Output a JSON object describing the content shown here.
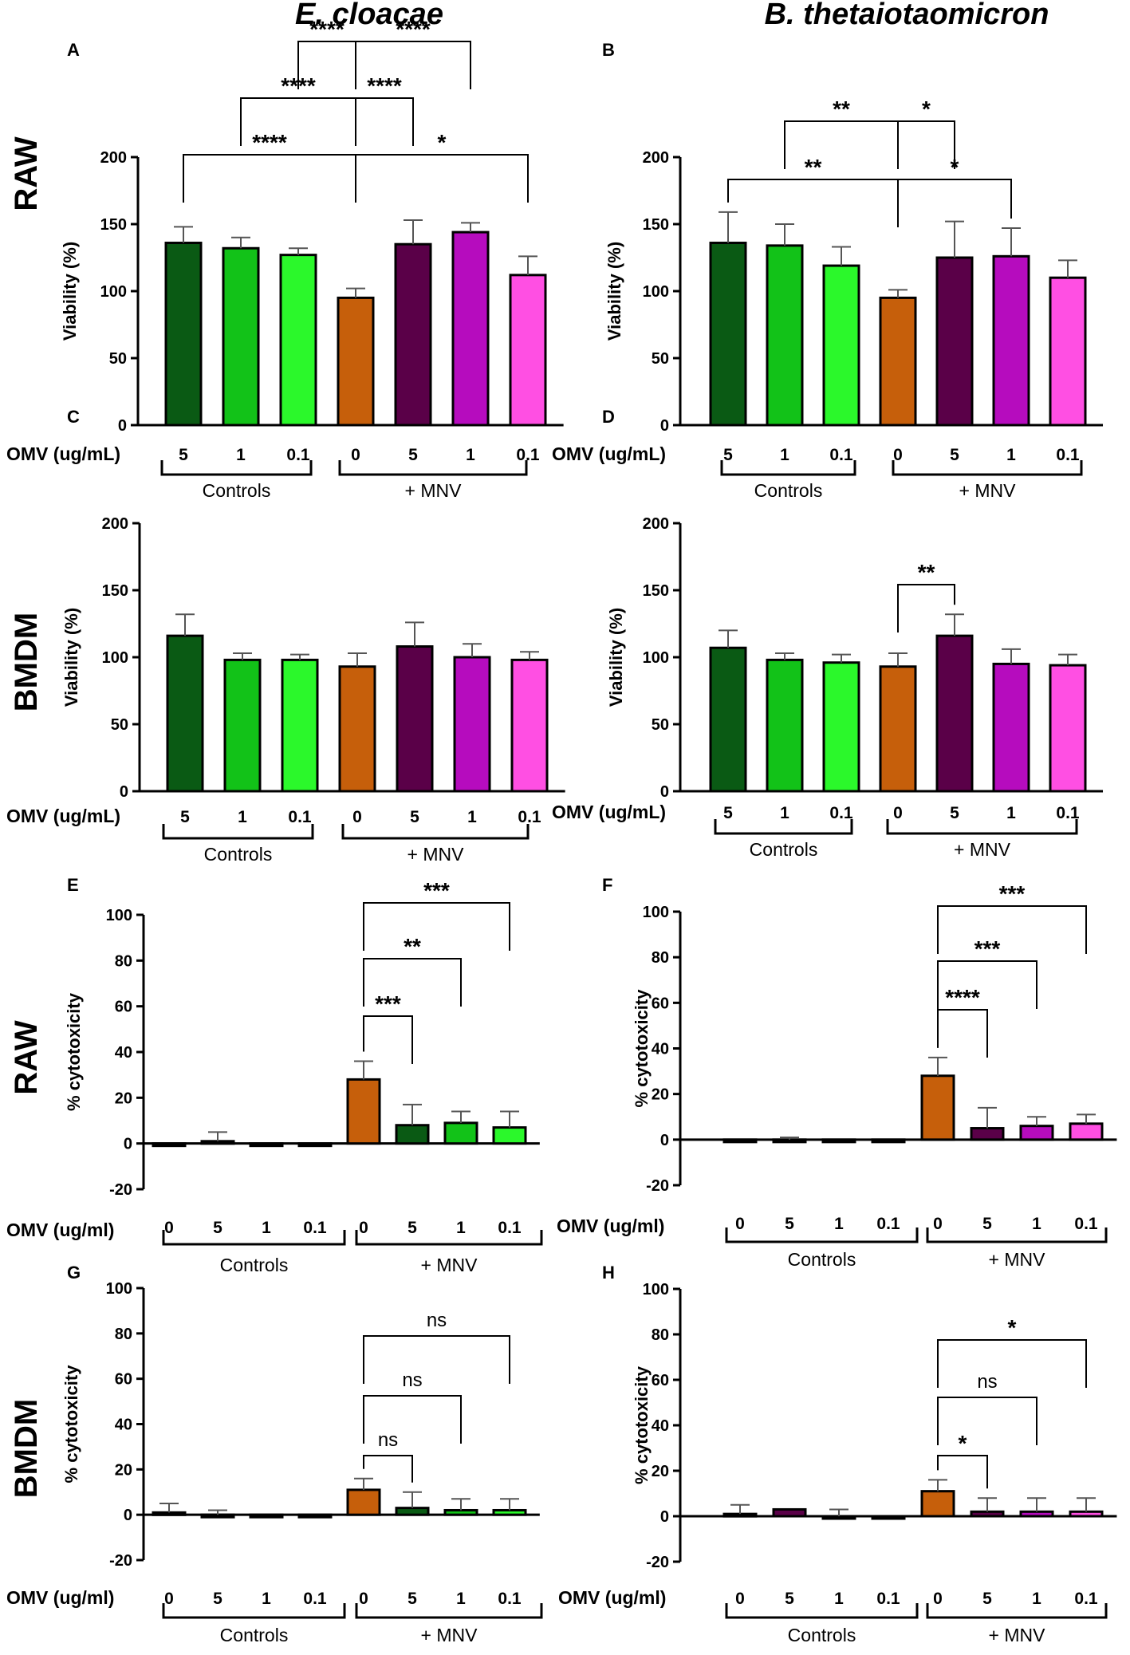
{
  "columns": [
    "E. cloacae",
    "B. thetaiotaomicron"
  ],
  "rows": [
    "RAW",
    "BMDM",
    "RAW",
    "BMDM"
  ],
  "colors": {
    "dark_green": "#0a5a14",
    "green": "#12c218",
    "light_green": "#2bf82b",
    "orange": "#c65f0b",
    "dark_purple": "#5a0048",
    "purple": "#b60cbe",
    "pink": "#ff4fe3"
  },
  "chart_data": [
    {
      "panel": "A",
      "organism": "E. cloacae",
      "cell": "RAW",
      "type": "bar",
      "title": "",
      "ylabel": "Viability (%)",
      "ylim": [
        0,
        200
      ],
      "yticks": [
        0,
        50,
        100,
        150,
        200
      ],
      "omv_label": "OMV (ug/mL)",
      "categories": [
        "5",
        "1",
        "0.1",
        "0",
        "5",
        "1",
        "0.1"
      ],
      "values": [
        136,
        132,
        127,
        95,
        135,
        144,
        112
      ],
      "errors": [
        12,
        8,
        5,
        7,
        18,
        7,
        14
      ],
      "colors": [
        "#0a5a14",
        "#12c218",
        "#2bf82b",
        "#c65f0b",
        "#5a0048",
        "#b60cbe",
        "#ff4fe3"
      ],
      "groups": [
        {
          "label": "Controls",
          "from": 0,
          "to": 2
        },
        {
          "label": "+ MNV",
          "from": 3,
          "to": 6
        }
      ],
      "comparisons": [
        {
          "from": 0,
          "to": 3,
          "label": "****",
          "level": 3
        },
        {
          "from": 3,
          "to": 6,
          "label": "*",
          "level": 3
        },
        {
          "from": 1,
          "to": 3,
          "label": "****",
          "level": 2
        },
        {
          "from": 3,
          "to": 4,
          "label": "****",
          "level": 2
        },
        {
          "from": 2,
          "to": 3,
          "label": "****",
          "level": 1
        },
        {
          "from": 3,
          "to": 5,
          "label": "****",
          "level": 1
        }
      ]
    },
    {
      "panel": "B",
      "organism": "B. thetaiotaomicron",
      "cell": "RAW",
      "type": "bar",
      "title": "",
      "ylabel": "Viability (%)",
      "ylim": [
        0,
        200
      ],
      "yticks": [
        0,
        50,
        100,
        150,
        200
      ],
      "omv_label": "OMV (ug/mL)",
      "categories": [
        "5",
        "1",
        "0.1",
        "0",
        "5",
        "1",
        "0.1"
      ],
      "values": [
        136,
        134,
        119,
        95,
        125,
        126,
        110
      ],
      "errors": [
        23,
        16,
        14,
        6,
        27,
        21,
        13
      ],
      "colors": [
        "#0a5a14",
        "#12c218",
        "#2bf82b",
        "#c65f0b",
        "#5a0048",
        "#b60cbe",
        "#ff4fe3"
      ],
      "groups": [
        {
          "label": "Controls",
          "from": 0,
          "to": 2
        },
        {
          "label": "+ MNV",
          "from": 3,
          "to": 6
        }
      ],
      "comparisons": [
        {
          "from": 0,
          "to": 3,
          "label": "**",
          "level": 2
        },
        {
          "from": 3,
          "to": 5,
          "label": "*",
          "level": 2
        },
        {
          "from": 1,
          "to": 3,
          "label": "**",
          "level": 1
        },
        {
          "from": 3,
          "to": 4,
          "label": "*",
          "level": 1
        }
      ]
    },
    {
      "panel": "C",
      "organism": "E. cloacae",
      "cell": "BMDM",
      "type": "bar",
      "title": "",
      "ylabel": "Viability (%)",
      "ylim": [
        0,
        200
      ],
      "yticks": [
        0,
        50,
        100,
        150,
        200
      ],
      "omv_label": "OMV (ug/mL)",
      "categories": [
        "5",
        "1",
        "0.1",
        "0",
        "5",
        "1",
        "0.1"
      ],
      "values": [
        116,
        98,
        98,
        93,
        108,
        100,
        98
      ],
      "errors": [
        16,
        5,
        4,
        10,
        18,
        10,
        6
      ],
      "colors": [
        "#0a5a14",
        "#12c218",
        "#2bf82b",
        "#c65f0b",
        "#5a0048",
        "#b60cbe",
        "#ff4fe3"
      ],
      "groups": [
        {
          "label": "Controls",
          "from": 0,
          "to": 2
        },
        {
          "label": "+ MNV",
          "from": 3,
          "to": 6
        }
      ],
      "comparisons": []
    },
    {
      "panel": "D",
      "organism": "B. thetaiotaomicron",
      "cell": "BMDM",
      "type": "bar",
      "title": "",
      "ylabel": "Viability (%)",
      "ylim": [
        0,
        200
      ],
      "yticks": [
        0,
        50,
        100,
        150,
        200
      ],
      "omv_label": "OMV (ug/mL)",
      "categories": [
        "5",
        "1",
        "0.1",
        "0",
        "5",
        "1",
        "0.1"
      ],
      "values": [
        107,
        98,
        96,
        93,
        116,
        95,
        94
      ],
      "errors": [
        13,
        5,
        6,
        10,
        16,
        11,
        8
      ],
      "colors": [
        "#0a5a14",
        "#12c218",
        "#2bf82b",
        "#c65f0b",
        "#5a0048",
        "#b60cbe",
        "#ff4fe3"
      ],
      "groups": [
        {
          "label": "Controls",
          "from": 0,
          "to": 2
        },
        {
          "label": "+ MNV",
          "from": 3,
          "to": 6
        }
      ],
      "comparisons": [
        {
          "from": 3,
          "to": 4,
          "label": "**",
          "level": 1
        }
      ]
    },
    {
      "panel": "E",
      "organism": "E. cloacae",
      "cell": "RAW",
      "type": "bar",
      "title": "",
      "ylabel": "% cytotoxicity",
      "ylim": [
        -20,
        100
      ],
      "yticks": [
        -20,
        0,
        20,
        40,
        60,
        80,
        100
      ],
      "omv_label": "OMV (ug/ml)",
      "categories": [
        "0",
        "5",
        "1",
        "0.1",
        "0",
        "5",
        "1",
        "0.1"
      ],
      "values": [
        -1,
        1,
        0,
        0,
        28,
        8,
        9,
        7
      ],
      "errors": [
        0,
        4,
        0,
        0,
        8,
        9,
        5,
        7
      ],
      "colors": [
        "#0a5a14",
        "#0a5a14",
        "#0a5a14",
        "#0a5a14",
        "#c65f0b",
        "#0a5a14",
        "#12c218",
        "#2bf82b"
      ],
      "groups": [
        {
          "label": "Controls",
          "from": 0,
          "to": 3
        },
        {
          "label": "+ MNV",
          "from": 4,
          "to": 7
        }
      ],
      "comparisons": [
        {
          "from": 4,
          "to": 7,
          "label": "***",
          "level": 3
        },
        {
          "from": 4,
          "to": 6,
          "label": "**",
          "level": 2
        },
        {
          "from": 4,
          "to": 5,
          "label": "***",
          "level": 1
        }
      ]
    },
    {
      "panel": "F",
      "organism": "B. thetaiotaomicron",
      "cell": "RAW",
      "type": "bar",
      "title": "",
      "ylabel": "% cytotoxicity",
      "ylim": [
        -20,
        100
      ],
      "yticks": [
        -20,
        0,
        20,
        40,
        60,
        80,
        100
      ],
      "omv_label": "OMV (ug/ml)",
      "categories": [
        "0",
        "5",
        "1",
        "0.1",
        "0",
        "5",
        "1",
        "0.1"
      ],
      "values": [
        -1,
        0,
        0,
        0,
        28,
        5,
        6,
        7
      ],
      "errors": [
        0,
        1,
        0,
        0,
        8,
        9,
        4,
        4
      ],
      "colors": [
        "#5a0048",
        "#5a0048",
        "#5a0048",
        "#5a0048",
        "#c65f0b",
        "#5a0048",
        "#b60cbe",
        "#ff4fe3"
      ],
      "groups": [
        {
          "label": "Controls",
          "from": 0,
          "to": 3
        },
        {
          "label": "+ MNV",
          "from": 4,
          "to": 7
        }
      ],
      "comparisons": [
        {
          "from": 4,
          "to": 7,
          "label": "***",
          "level": 3
        },
        {
          "from": 4,
          "to": 6,
          "label": "***",
          "level": 2
        },
        {
          "from": 4,
          "to": 5,
          "label": "****",
          "level": 1
        }
      ]
    },
    {
      "panel": "G",
      "organism": "E. cloacae",
      "cell": "BMDM",
      "type": "bar",
      "title": "",
      "ylabel": "% cytotoxicity",
      "ylim": [
        -20,
        100
      ],
      "yticks": [
        -20,
        0,
        20,
        40,
        60,
        80,
        100
      ],
      "omv_label": "OMV (ug/ml)",
      "categories": [
        "0",
        "5",
        "1",
        "0.1",
        "0",
        "5",
        "1",
        "0.1"
      ],
      "values": [
        1,
        0,
        -1,
        -1,
        11,
        3,
        2,
        2
      ],
      "errors": [
        4,
        2,
        0,
        0,
        5,
        7,
        5,
        5
      ],
      "colors": [
        "#0a5a14",
        "#0a5a14",
        "#0a5a14",
        "#0a5a14",
        "#c65f0b",
        "#0a5a14",
        "#12c218",
        "#2bf82b"
      ],
      "groups": [
        {
          "label": "Controls",
          "from": 0,
          "to": 3
        },
        {
          "label": "+ MNV",
          "from": 4,
          "to": 7
        }
      ],
      "comparisons": [
        {
          "from": 4,
          "to": 7,
          "label": "ns",
          "level": 3
        },
        {
          "from": 4,
          "to": 6,
          "label": "ns",
          "level": 2
        },
        {
          "from": 4,
          "to": 5,
          "label": "ns",
          "level": 1
        }
      ]
    },
    {
      "panel": "H",
      "organism": "B. thetaiotaomicron",
      "cell": "BMDM",
      "type": "bar",
      "title": "",
      "ylabel": "% cytotoxicity",
      "ylim": [
        -20,
        100
      ],
      "yticks": [
        -20,
        0,
        20,
        40,
        60,
        80,
        100
      ],
      "omv_label": "OMV (ug/ml)",
      "categories": [
        "0",
        "5",
        "1",
        "0.1",
        "0",
        "5",
        "1",
        "0.1"
      ],
      "values": [
        1,
        3,
        0,
        -1,
        11,
        2,
        2,
        2
      ],
      "errors": [
        4,
        0,
        3,
        0,
        5,
        6,
        6,
        6
      ],
      "colors": [
        "#5a0048",
        "#5a0048",
        "#5a0048",
        "#5a0048",
        "#c65f0b",
        "#5a0048",
        "#b60cbe",
        "#ff4fe3"
      ],
      "groups": [
        {
          "label": "Controls",
          "from": 0,
          "to": 3
        },
        {
          "label": "+ MNV",
          "from": 4,
          "to": 7
        }
      ],
      "comparisons": [
        {
          "from": 4,
          "to": 7,
          "label": "*",
          "level": 3
        },
        {
          "from": 4,
          "to": 6,
          "label": "ns",
          "level": 2
        },
        {
          "from": 4,
          "to": 5,
          "label": "*",
          "level": 1
        }
      ]
    }
  ]
}
